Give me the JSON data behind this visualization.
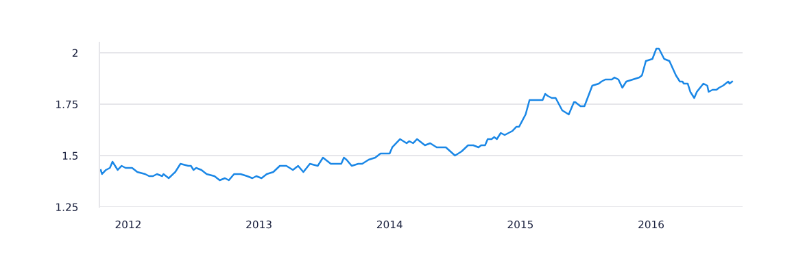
{
  "chart_data": {
    "type": "line",
    "grid": "y",
    "xlim": [
      2011.78,
      2016.7
    ],
    "xticks": [
      2012,
      2013,
      2014,
      2015,
      2016
    ],
    "ylim": [
      1.25,
      2.05
    ],
    "yticks": [
      1.25,
      1.5,
      1.75,
      2
    ],
    "series": [
      {
        "color": "#1a87e6",
        "x": [
          2011.79,
          2011.8,
          2011.83,
          2011.86,
          2011.88,
          2011.92,
          2011.95,
          2011.98,
          2012.03,
          2012.07,
          2012.13,
          2012.16,
          2012.19,
          2012.22,
          2012.26,
          2012.27,
          2012.31,
          2012.36,
          2012.4,
          2012.46,
          2012.48,
          2012.5,
          2012.52,
          2012.56,
          2012.6,
          2012.66,
          2012.7,
          2012.74,
          2012.77,
          2012.81,
          2012.86,
          2012.91,
          2012.95,
          2012.98,
          2013.02,
          2013.06,
          2013.11,
          2013.16,
          2013.19,
          2013.21,
          2013.26,
          2013.3,
          2013.34,
          2013.39,
          2013.45,
          2013.49,
          2013.55,
          2013.61,
          2013.63,
          2013.65,
          2013.67,
          2013.71,
          2013.76,
          2013.79,
          2013.84,
          2013.89,
          2013.93,
          2013.96,
          2014.0,
          2014.02,
          2014.08,
          2014.13,
          2014.15,
          2014.18,
          2014.21,
          2014.27,
          2014.31,
          2014.36,
          2014.4,
          2014.43,
          2014.5,
          2014.55,
          2014.6,
          2014.64,
          2014.68,
          2014.7,
          2014.73,
          2014.75,
          2014.78,
          2014.8,
          2014.82,
          2014.85,
          2014.88,
          2014.94,
          2014.97,
          2014.99,
          2015.04,
          2015.07,
          2015.1,
          2015.15,
          2015.17,
          2015.19,
          2015.21,
          2015.24,
          2015.27,
          2015.32,
          2015.37,
          2015.41,
          2015.42,
          2015.46,
          2015.49,
          2015.55,
          2015.6,
          2015.62,
          2015.65,
          2015.7,
          2015.72,
          2015.75,
          2015.78,
          2015.81,
          2015.86,
          2015.91,
          2015.93,
          2015.96,
          2016.01,
          2016.04,
          2016.06,
          2016.1,
          2016.14,
          2016.19,
          2016.22,
          2016.24,
          2016.25,
          2016.28,
          2016.3,
          2016.33,
          2016.35,
          2016.4,
          2016.43,
          2016.44,
          2016.47,
          2016.5,
          2016.52,
          2016.55,
          2016.59,
          2016.6,
          2016.62
        ],
        "values": [
          1.43,
          1.41,
          1.43,
          1.44,
          1.47,
          1.43,
          1.45,
          1.44,
          1.44,
          1.42,
          1.41,
          1.4,
          1.4,
          1.41,
          1.4,
          1.41,
          1.39,
          1.42,
          1.46,
          1.45,
          1.45,
          1.43,
          1.44,
          1.43,
          1.41,
          1.4,
          1.38,
          1.39,
          1.38,
          1.41,
          1.41,
          1.4,
          1.39,
          1.4,
          1.39,
          1.41,
          1.42,
          1.45,
          1.45,
          1.45,
          1.43,
          1.45,
          1.42,
          1.46,
          1.45,
          1.49,
          1.46,
          1.46,
          1.46,
          1.49,
          1.48,
          1.45,
          1.46,
          1.46,
          1.48,
          1.49,
          1.51,
          1.51,
          1.51,
          1.54,
          1.58,
          1.56,
          1.57,
          1.56,
          1.58,
          1.55,
          1.56,
          1.54,
          1.54,
          1.54,
          1.5,
          1.52,
          1.55,
          1.55,
          1.54,
          1.55,
          1.55,
          1.58,
          1.58,
          1.59,
          1.58,
          1.61,
          1.6,
          1.62,
          1.64,
          1.64,
          1.7,
          1.77,
          1.77,
          1.77,
          1.77,
          1.8,
          1.79,
          1.78,
          1.78,
          1.72,
          1.7,
          1.76,
          1.76,
          1.74,
          1.74,
          1.84,
          1.85,
          1.86,
          1.87,
          1.87,
          1.88,
          1.87,
          1.83,
          1.86,
          1.87,
          1.88,
          1.89,
          1.96,
          1.97,
          2.02,
          2.02,
          1.97,
          1.96,
          1.89,
          1.86,
          1.86,
          1.85,
          1.85,
          1.81,
          1.78,
          1.81,
          1.85,
          1.84,
          1.81,
          1.82,
          1.82,
          1.83,
          1.84,
          1.86,
          1.85,
          1.86
        ]
      }
    ]
  }
}
